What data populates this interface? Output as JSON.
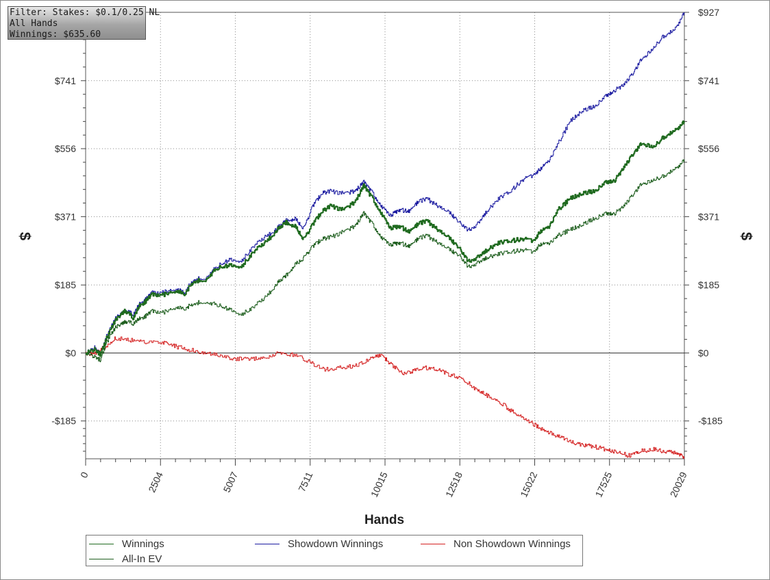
{
  "filter_box": {
    "line1": "Filter: Stakes: $0.1/0.25 NL",
    "line2": "All Hands",
    "line3": "Winnings: $635.60"
  },
  "colors": {
    "winnings": "#1f6a1f",
    "showdown": "#1a1aa0",
    "nonshowdown": "#d42020",
    "allin_ev": "#1f5f1f"
  },
  "legend": [
    {
      "key": "winnings",
      "label": "Winnings"
    },
    {
      "key": "showdown",
      "label": "Showdown Winnings"
    },
    {
      "key": "nonshowdown",
      "label": "Non Showdown Winnings"
    },
    {
      "key": "allin_ev",
      "label": "All-In EV"
    }
  ],
  "chart_data": {
    "type": "line",
    "xlabel": "Hands",
    "ylabel_left": "$",
    "ylabel_right": "$",
    "xlim": [
      0,
      20029
    ],
    "ylim": [
      -288,
      927
    ],
    "x_ticks": [
      0,
      2504,
      5007,
      7511,
      10015,
      12518,
      15022,
      17525,
      20029
    ],
    "y_ticks": [
      {
        "value": 927,
        "label": "$927"
      },
      {
        "value": 741,
        "label": "$741"
      },
      {
        "value": 556,
        "label": "$556"
      },
      {
        "value": 371,
        "label": "$371"
      },
      {
        "value": 185,
        "label": "$185"
      },
      {
        "value": 0,
        "label": "$0"
      },
      {
        "value": -185,
        "label": "-$185"
      }
    ],
    "grid": "dotted",
    "legend_position": "bottom",
    "series": [
      {
        "name": "Winnings",
        "key": "winnings",
        "points": [
          [
            0,
            0
          ],
          [
            300,
            10
          ],
          [
            500,
            -5
          ],
          [
            700,
            40
          ],
          [
            1000,
            90
          ],
          [
            1300,
            115
          ],
          [
            1600,
            95
          ],
          [
            1800,
            130
          ],
          [
            2000,
            140
          ],
          [
            2200,
            160
          ],
          [
            2600,
            158
          ],
          [
            3000,
            170
          ],
          [
            3300,
            160
          ],
          [
            3600,
            195
          ],
          [
            4000,
            200
          ],
          [
            4400,
            230
          ],
          [
            4800,
            240
          ],
          [
            5200,
            235
          ],
          [
            5600,
            275
          ],
          [
            6000,
            300
          ],
          [
            6400,
            335
          ],
          [
            6700,
            355
          ],
          [
            7000,
            345
          ],
          [
            7300,
            310
          ],
          [
            7600,
            350
          ],
          [
            7900,
            385
          ],
          [
            8200,
            400
          ],
          [
            8600,
            390
          ],
          [
            9000,
            410
          ],
          [
            9300,
            455
          ],
          [
            9600,
            420
          ],
          [
            9900,
            380
          ],
          [
            10200,
            340
          ],
          [
            10500,
            345
          ],
          [
            10800,
            330
          ],
          [
            11100,
            350
          ],
          [
            11400,
            360
          ],
          [
            11800,
            335
          ],
          [
            12200,
            310
          ],
          [
            12500,
            285
          ],
          [
            12800,
            250
          ],
          [
            13100,
            260
          ],
          [
            13400,
            280
          ],
          [
            13800,
            300
          ],
          [
            14200,
            305
          ],
          [
            14600,
            310
          ],
          [
            15000,
            305
          ],
          [
            15200,
            330
          ],
          [
            15500,
            345
          ],
          [
            15800,
            390
          ],
          [
            16200,
            420
          ],
          [
            16600,
            435
          ],
          [
            17000,
            440
          ],
          [
            17400,
            465
          ],
          [
            17700,
            470
          ],
          [
            18000,
            505
          ],
          [
            18300,
            540
          ],
          [
            18600,
            570
          ],
          [
            19000,
            560
          ],
          [
            19300,
            585
          ],
          [
            19700,
            605
          ],
          [
            20029,
            630
          ]
        ]
      },
      {
        "name": "Showdown Winnings",
        "key": "showdown",
        "points": [
          [
            0,
            0
          ],
          [
            300,
            15
          ],
          [
            500,
            -5
          ],
          [
            700,
            45
          ],
          [
            1000,
            95
          ],
          [
            1300,
            115
          ],
          [
            1600,
            105
          ],
          [
            1800,
            135
          ],
          [
            2000,
            145
          ],
          [
            2200,
            165
          ],
          [
            2600,
            165
          ],
          [
            3000,
            175
          ],
          [
            3300,
            165
          ],
          [
            3600,
            200
          ],
          [
            4000,
            205
          ],
          [
            4400,
            235
          ],
          [
            4800,
            255
          ],
          [
            5200,
            250
          ],
          [
            5600,
            290
          ],
          [
            6000,
            315
          ],
          [
            6400,
            340
          ],
          [
            6700,
            360
          ],
          [
            7000,
            365
          ],
          [
            7300,
            340
          ],
          [
            7600,
            400
          ],
          [
            7900,
            435
          ],
          [
            8200,
            440
          ],
          [
            8600,
            435
          ],
          [
            9000,
            440
          ],
          [
            9300,
            465
          ],
          [
            9600,
            435
          ],
          [
            9900,
            400
          ],
          [
            10200,
            375
          ],
          [
            10500,
            390
          ],
          [
            10800,
            385
          ],
          [
            11100,
            410
          ],
          [
            11400,
            420
          ],
          [
            11800,
            400
          ],
          [
            12200,
            380
          ],
          [
            12500,
            355
          ],
          [
            12800,
            335
          ],
          [
            13100,
            350
          ],
          [
            13400,
            385
          ],
          [
            13800,
            420
          ],
          [
            14200,
            440
          ],
          [
            14600,
            470
          ],
          [
            15000,
            485
          ],
          [
            15200,
            500
          ],
          [
            15500,
            525
          ],
          [
            15800,
            570
          ],
          [
            16200,
            630
          ],
          [
            16600,
            660
          ],
          [
            17000,
            670
          ],
          [
            17400,
            700
          ],
          [
            17700,
            715
          ],
          [
            18000,
            730
          ],
          [
            18300,
            760
          ],
          [
            18600,
            800
          ],
          [
            19000,
            830
          ],
          [
            19300,
            860
          ],
          [
            19700,
            880
          ],
          [
            20029,
            927
          ]
        ]
      },
      {
        "name": "Non Showdown Winnings",
        "key": "nonshowdown",
        "points": [
          [
            0,
            0
          ],
          [
            300,
            -3
          ],
          [
            600,
            15
          ],
          [
            1000,
            40
          ],
          [
            1500,
            35
          ],
          [
            2000,
            30
          ],
          [
            2600,
            28
          ],
          [
            3000,
            18
          ],
          [
            3500,
            8
          ],
          [
            4000,
            0
          ],
          [
            4500,
            -8
          ],
          [
            5000,
            -15
          ],
          [
            5500,
            -18
          ],
          [
            6000,
            -12
          ],
          [
            6500,
            0
          ],
          [
            7000,
            -5
          ],
          [
            7500,
            -25
          ],
          [
            8000,
            -45
          ],
          [
            8500,
            -40
          ],
          [
            9000,
            -35
          ],
          [
            9500,
            -15
          ],
          [
            9900,
            -5
          ],
          [
            10200,
            -30
          ],
          [
            10600,
            -55
          ],
          [
            11000,
            -48
          ],
          [
            11400,
            -40
          ],
          [
            11800,
            -45
          ],
          [
            12200,
            -60
          ],
          [
            12600,
            -70
          ],
          [
            13000,
            -95
          ],
          [
            13400,
            -115
          ],
          [
            13800,
            -130
          ],
          [
            14200,
            -155
          ],
          [
            14600,
            -175
          ],
          [
            15000,
            -195
          ],
          [
            15400,
            -215
          ],
          [
            15800,
            -225
          ],
          [
            16200,
            -240
          ],
          [
            16600,
            -250
          ],
          [
            17000,
            -255
          ],
          [
            17400,
            -262
          ],
          [
            17800,
            -270
          ],
          [
            18200,
            -280
          ],
          [
            18500,
            -268
          ],
          [
            19000,
            -262
          ],
          [
            19400,
            -268
          ],
          [
            19800,
            -272
          ],
          [
            20029,
            -288
          ]
        ]
      },
      {
        "name": "All-In EV",
        "key": "allin_ev",
        "points": [
          [
            0,
            0
          ],
          [
            300,
            -10
          ],
          [
            500,
            -20
          ],
          [
            700,
            30
          ],
          [
            1000,
            70
          ],
          [
            1300,
            85
          ],
          [
            1600,
            80
          ],
          [
            1800,
            95
          ],
          [
            2000,
            100
          ],
          [
            2200,
            115
          ],
          [
            2600,
            110
          ],
          [
            3000,
            125
          ],
          [
            3300,
            120
          ],
          [
            3600,
            135
          ],
          [
            4000,
            140
          ],
          [
            4400,
            130
          ],
          [
            4800,
            120
          ],
          [
            5200,
            105
          ],
          [
            5600,
            125
          ],
          [
            6000,
            150
          ],
          [
            6400,
            190
          ],
          [
            6700,
            210
          ],
          [
            7000,
            240
          ],
          [
            7300,
            260
          ],
          [
            7600,
            290
          ],
          [
            7900,
            310
          ],
          [
            8200,
            315
          ],
          [
            8600,
            330
          ],
          [
            9000,
            345
          ],
          [
            9300,
            380
          ],
          [
            9600,
            350
          ],
          [
            9900,
            315
          ],
          [
            10200,
            295
          ],
          [
            10500,
            300
          ],
          [
            10800,
            290
          ],
          [
            11100,
            310
          ],
          [
            11400,
            320
          ],
          [
            11800,
            300
          ],
          [
            12200,
            280
          ],
          [
            12500,
            265
          ],
          [
            12800,
            235
          ],
          [
            13100,
            245
          ],
          [
            13400,
            260
          ],
          [
            13800,
            270
          ],
          [
            14200,
            275
          ],
          [
            14600,
            280
          ],
          [
            15000,
            275
          ],
          [
            15200,
            295
          ],
          [
            15500,
            300
          ],
          [
            15800,
            320
          ],
          [
            16200,
            335
          ],
          [
            16600,
            350
          ],
          [
            17000,
            365
          ],
          [
            17400,
            380
          ],
          [
            17700,
            380
          ],
          [
            18000,
            400
          ],
          [
            18300,
            430
          ],
          [
            18600,
            460
          ],
          [
            19000,
            470
          ],
          [
            19300,
            480
          ],
          [
            19700,
            500
          ],
          [
            20029,
            525
          ]
        ]
      }
    ]
  }
}
